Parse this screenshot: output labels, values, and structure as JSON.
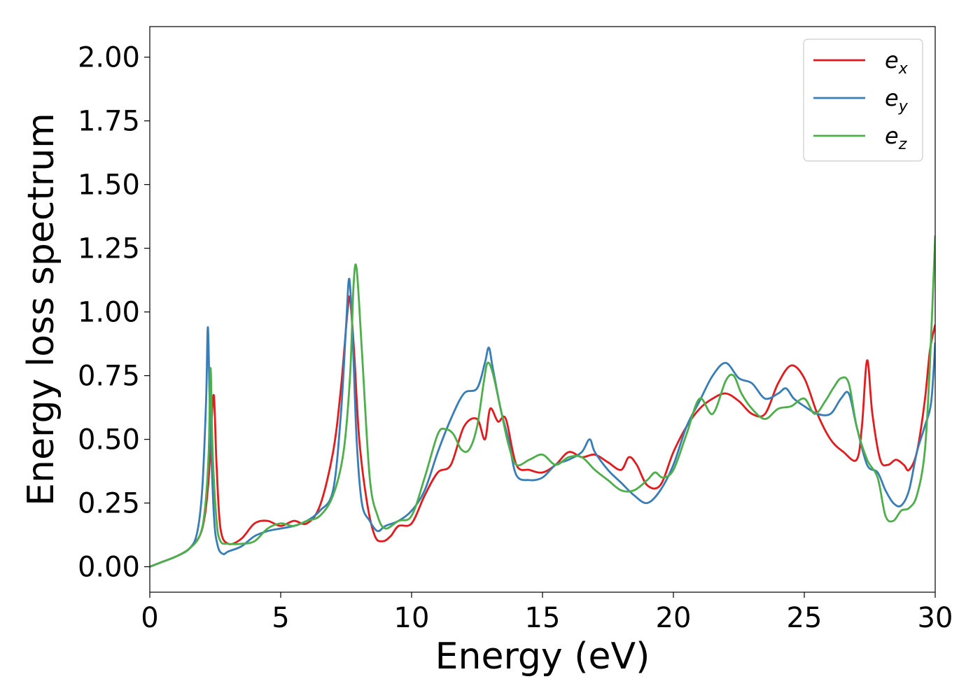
{
  "chart_data": {
    "type": "line",
    "title": "",
    "xlabel": "Energy (eV)",
    "ylabel": "Energy loss spectrum",
    "xlim": [
      0,
      30
    ],
    "ylim": [
      -0.1,
      2.12
    ],
    "xticks": [
      0,
      5,
      10,
      15,
      20,
      25,
      30
    ],
    "xtick_labels": [
      "0",
      "5",
      "10",
      "15",
      "20",
      "25",
      "30"
    ],
    "yticks": [
      0.0,
      0.25,
      0.5,
      0.75,
      1.0,
      1.25,
      1.5,
      1.75,
      2.0
    ],
    "ytick_labels": [
      "0.00",
      "0.25",
      "0.50",
      "0.75",
      "1.00",
      "1.25",
      "1.50",
      "1.75",
      "2.00"
    ],
    "grid": false,
    "legend_position": "top-right",
    "series": [
      {
        "name": "e_x",
        "label_base": "e",
        "label_sub": "x",
        "color": "#e41a1c",
        "x": [
          0,
          0.5,
          1.0,
          1.5,
          1.9,
          2.1,
          2.25,
          2.35,
          2.45,
          2.55,
          2.7,
          3.0,
          3.5,
          4.0,
          4.5,
          5.0,
          5.5,
          6.0,
          6.5,
          7.0,
          7.3,
          7.55,
          7.65,
          7.8,
          8.0,
          8.3,
          8.6,
          8.9,
          9.2,
          9.5,
          10.0,
          10.5,
          11.0,
          11.5,
          12.0,
          12.5,
          12.8,
          13.0,
          13.3,
          13.6,
          14.0,
          14.5,
          15.0,
          15.5,
          16.0,
          16.5,
          17.0,
          17.5,
          18.0,
          18.3,
          18.6,
          19.0,
          19.5,
          20.0,
          20.5,
          21.0,
          21.5,
          22.0,
          22.5,
          23.0,
          23.5,
          24.0,
          24.5,
          25.0,
          25.5,
          26.0,
          26.5,
          27.0,
          27.2,
          27.4,
          27.6,
          27.9,
          28.2,
          28.5,
          28.8,
          29.0,
          29.3,
          29.6,
          29.8,
          30.0
        ],
        "y": [
          0.0,
          0.02,
          0.04,
          0.07,
          0.12,
          0.2,
          0.35,
          0.55,
          0.67,
          0.4,
          0.15,
          0.09,
          0.11,
          0.17,
          0.18,
          0.16,
          0.18,
          0.17,
          0.24,
          0.45,
          0.7,
          1.0,
          1.05,
          0.85,
          0.5,
          0.25,
          0.12,
          0.1,
          0.12,
          0.16,
          0.17,
          0.28,
          0.37,
          0.4,
          0.55,
          0.58,
          0.5,
          0.62,
          0.57,
          0.58,
          0.4,
          0.38,
          0.37,
          0.4,
          0.45,
          0.43,
          0.44,
          0.41,
          0.38,
          0.43,
          0.4,
          0.32,
          0.32,
          0.45,
          0.55,
          0.62,
          0.66,
          0.68,
          0.65,
          0.6,
          0.6,
          0.72,
          0.79,
          0.74,
          0.6,
          0.5,
          0.45,
          0.42,
          0.55,
          0.81,
          0.6,
          0.42,
          0.4,
          0.42,
          0.4,
          0.38,
          0.45,
          0.65,
          0.85,
          0.95
        ]
      },
      {
        "name": "e_y",
        "label_base": "e",
        "label_sub": "y",
        "color": "#377eb8",
        "x": [
          0,
          0.5,
          1.0,
          1.5,
          1.8,
          2.0,
          2.15,
          2.22,
          2.3,
          2.45,
          2.6,
          2.8,
          3.0,
          3.5,
          4.0,
          4.5,
          5.0,
          5.5,
          6.0,
          6.5,
          7.0,
          7.3,
          7.5,
          7.62,
          7.75,
          7.9,
          8.1,
          8.4,
          8.7,
          9.0,
          9.5,
          10.0,
          10.5,
          11.0,
          11.5,
          12.0,
          12.5,
          12.8,
          12.95,
          13.1,
          13.4,
          13.7,
          14.0,
          14.5,
          15.0,
          15.5,
          16.0,
          16.5,
          16.8,
          17.0,
          17.5,
          18.0,
          18.5,
          19.0,
          19.5,
          20.0,
          20.5,
          21.0,
          21.5,
          22.0,
          22.5,
          23.0,
          23.5,
          24.0,
          24.3,
          24.6,
          25.0,
          25.5,
          26.0,
          26.4,
          26.7,
          27.0,
          27.4,
          27.8,
          28.1,
          28.4,
          28.7,
          29.0,
          29.3,
          29.6,
          29.85,
          30.0
        ],
        "y": [
          0.0,
          0.02,
          0.04,
          0.07,
          0.13,
          0.3,
          0.65,
          0.94,
          0.6,
          0.2,
          0.08,
          0.05,
          0.06,
          0.08,
          0.12,
          0.14,
          0.15,
          0.16,
          0.18,
          0.22,
          0.3,
          0.6,
          0.95,
          1.13,
          0.9,
          0.5,
          0.25,
          0.18,
          0.14,
          0.16,
          0.18,
          0.22,
          0.3,
          0.45,
          0.58,
          0.68,
          0.7,
          0.8,
          0.86,
          0.78,
          0.62,
          0.5,
          0.36,
          0.34,
          0.35,
          0.4,
          0.42,
          0.45,
          0.5,
          0.45,
          0.38,
          0.33,
          0.28,
          0.25,
          0.3,
          0.4,
          0.55,
          0.65,
          0.75,
          0.8,
          0.74,
          0.72,
          0.66,
          0.68,
          0.7,
          0.66,
          0.63,
          0.6,
          0.6,
          0.66,
          0.68,
          0.55,
          0.4,
          0.37,
          0.3,
          0.25,
          0.24,
          0.3,
          0.45,
          0.55,
          0.65,
          0.88
        ]
      },
      {
        "name": "e_z",
        "label_base": "e",
        "label_sub": "z",
        "color": "#4daf4a",
        "x": [
          0,
          0.5,
          1.0,
          1.5,
          1.9,
          2.1,
          2.25,
          2.32,
          2.4,
          2.55,
          2.7,
          3.0,
          3.5,
          4.0,
          4.5,
          5.0,
          5.5,
          6.0,
          6.5,
          7.0,
          7.4,
          7.65,
          7.78,
          7.9,
          8.1,
          8.4,
          8.7,
          9.0,
          9.5,
          10.0,
          10.5,
          11.0,
          11.3,
          11.6,
          11.9,
          12.2,
          12.5,
          12.75,
          12.9,
          13.1,
          13.4,
          13.7,
          14.0,
          14.5,
          15.0,
          15.5,
          16.0,
          16.5,
          17.0,
          17.5,
          18.0,
          18.5,
          19.0,
          19.3,
          19.6,
          20.0,
          20.5,
          21.0,
          21.5,
          22.0,
          22.3,
          22.6,
          23.0,
          23.5,
          24.0,
          24.5,
          25.0,
          25.4,
          25.8,
          26.1,
          26.4,
          26.7,
          27.0,
          27.4,
          27.8,
          28.1,
          28.4,
          28.7,
          29.0,
          29.3,
          29.6,
          29.8,
          30.0
        ],
        "y": [
          0.0,
          0.02,
          0.04,
          0.07,
          0.12,
          0.22,
          0.45,
          0.78,
          0.45,
          0.18,
          0.1,
          0.09,
          0.09,
          0.1,
          0.15,
          0.17,
          0.16,
          0.18,
          0.2,
          0.28,
          0.45,
          0.75,
          1.1,
          1.17,
          0.85,
          0.35,
          0.2,
          0.15,
          0.18,
          0.2,
          0.35,
          0.52,
          0.54,
          0.52,
          0.46,
          0.46,
          0.55,
          0.72,
          0.8,
          0.76,
          0.62,
          0.48,
          0.4,
          0.42,
          0.44,
          0.4,
          0.43,
          0.43,
          0.38,
          0.34,
          0.3,
          0.3,
          0.34,
          0.37,
          0.35,
          0.38,
          0.52,
          0.66,
          0.6,
          0.73,
          0.75,
          0.68,
          0.62,
          0.58,
          0.62,
          0.63,
          0.66,
          0.6,
          0.65,
          0.7,
          0.74,
          0.72,
          0.55,
          0.42,
          0.35,
          0.2,
          0.18,
          0.22,
          0.23,
          0.28,
          0.45,
          0.8,
          1.3
        ]
      }
    ]
  }
}
